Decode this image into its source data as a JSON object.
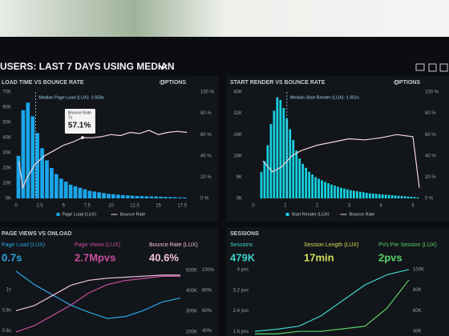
{
  "header": {
    "title": "USERS: LAST 7 DAYS USING MEDIAN"
  },
  "chart_data": [
    {
      "type": "histogram",
      "title": "LOAD TIME VS BOUNCE RATE",
      "options": "OPTIONS",
      "annotation": "Median Page Load (LUX): 2.058s",
      "median": 2.058,
      "tooltip": {
        "title": "Bounce Rate",
        "subtitle": "7s",
        "x": 7,
        "value": 57.1,
        "value_label": "57.1%"
      },
      "bins": [
        0,
        0.5,
        1,
        1.5,
        2,
        2.5,
        3,
        3.5,
        4,
        4.5,
        5,
        5.5,
        6,
        6.5,
        7,
        7.5,
        8,
        8.5,
        9,
        9.5,
        10,
        10.5,
        11,
        11.5,
        12,
        12.5,
        13,
        13.5,
        14,
        14.5,
        15,
        15.5,
        16,
        16.5,
        17,
        17.5,
        18
      ],
      "series": [
        {
          "name": "Page Load (LUX)",
          "color": "#1ba6ea",
          "values": [
            28000,
            58000,
            63000,
            54000,
            43000,
            33000,
            25000,
            20000,
            16000,
            13000,
            11000,
            9000,
            8000,
            7000,
            6000,
            5000,
            4500,
            4000,
            3500,
            3000,
            2800,
            2500,
            2200,
            2000,
            1800,
            1600,
            1500,
            1400,
            1300,
            1200,
            1100,
            1000,
            900,
            800,
            700,
            600
          ]
        },
        {
          "name": "Bounce Rate",
          "color": "#f2d6de",
          "type": "line",
          "axis": "y2",
          "x": [
            0.3,
            0.7,
            1.2,
            2,
            3,
            4,
            5,
            6,
            7,
            8,
            9,
            10,
            11,
            12,
            13,
            14,
            15,
            16,
            17,
            18
          ],
          "values": [
            35,
            10,
            20,
            32,
            40,
            45,
            50,
            53,
            57.1,
            57,
            58,
            60,
            59,
            62,
            61,
            64,
            60,
            62,
            63,
            62
          ]
        }
      ],
      "xlim": [
        0,
        19
      ],
      "xticks": [
        0,
        2.5,
        5,
        7.5,
        10,
        12.5,
        15,
        17.5
      ],
      "ylim": [
        0,
        70000
      ],
      "yticks": [
        {
          "value": 0,
          "label": "0K"
        },
        {
          "value": 10000,
          "label": "10K"
        },
        {
          "value": 20000,
          "label": "20K"
        },
        {
          "value": 30000,
          "label": "30K"
        },
        {
          "value": 40000,
          "label": "40K"
        },
        {
          "value": 50000,
          "label": "50K"
        },
        {
          "value": 60000,
          "label": "60K"
        },
        {
          "value": 70000,
          "label": "70K"
        }
      ],
      "y2lim": [
        0,
        100
      ],
      "y2ticks": [
        {
          "value": 0,
          "label": "0 %"
        },
        {
          "value": 20,
          "label": "20 %"
        },
        {
          "value": 40,
          "label": "40 %"
        },
        {
          "value": 60,
          "label": "60 %"
        },
        {
          "value": 80,
          "label": "80 %"
        },
        {
          "value": 100,
          "label": "100 %"
        }
      ]
    },
    {
      "type": "histogram",
      "title": "START RENDER VS BOUNCE RATE",
      "options": "OPTIONS",
      "annotation": "Median Start Render (LUX): 1.051s",
      "median": 1.051,
      "bins": [
        0.2,
        0.3,
        0.4,
        0.5,
        0.6,
        0.7,
        0.8,
        0.9,
        1,
        1.1,
        1.2,
        1.3,
        1.4,
        1.5,
        1.6,
        1.7,
        1.8,
        1.9,
        2,
        2.1,
        2.2,
        2.3,
        2.4,
        2.5,
        2.6,
        2.7,
        2.8,
        2.9,
        3,
        3.1,
        3.2,
        3.3,
        3.4,
        3.5,
        3.6,
        3.7,
        3.8,
        3.9,
        4,
        4.1,
        4.2,
        4.3,
        4.4,
        4.5,
        4.6,
        4.7,
        4.8,
        4.9,
        5,
        5.1,
        5.2
      ],
      "series": [
        {
          "name": "Start Render (LUX)",
          "color": "#17d0e0",
          "values": [
            10000,
            14000,
            20000,
            28000,
            33000,
            38000,
            37000,
            34000,
            30000,
            26000,
            22000,
            18000,
            15000,
            13000,
            11500,
            10000,
            9000,
            8000,
            7400,
            6800,
            6200,
            5700,
            5200,
            4800,
            4400,
            4000,
            3700,
            3400,
            3100,
            2900,
            2700,
            2500,
            2300,
            2100,
            1900,
            1800,
            1700,
            1600,
            1500,
            1400,
            1300,
            1200,
            1100,
            1000,
            900,
            800,
            700,
            600,
            500,
            400
          ]
        },
        {
          "name": "Bounce Rate",
          "color": "#f2d6de",
          "type": "line",
          "axis": "y2",
          "x": [
            0.3,
            0.6,
            0.9,
            1.2,
            1.5,
            2,
            2.5,
            3,
            3.5,
            4,
            4.5,
            5,
            5.2
          ],
          "values": [
            35,
            25,
            30,
            40,
            45,
            50,
            53,
            56,
            55,
            57,
            60,
            58,
            10
          ]
        }
      ],
      "xlim": [
        -0.1,
        5.25
      ],
      "xticks": [
        0,
        1,
        2,
        3,
        4,
        5
      ],
      "ylim": [
        0,
        40000
      ],
      "yticks": [
        {
          "value": 0,
          "label": "0K"
        },
        {
          "value": 8000,
          "label": "8K"
        },
        {
          "value": 16000,
          "label": "16K"
        },
        {
          "value": 24000,
          "label": "24K"
        },
        {
          "value": 32000,
          "label": "32K"
        },
        {
          "value": 40000,
          "label": "40K"
        }
      ],
      "y2lim": [
        0,
        100
      ],
      "y2ticks": [
        {
          "value": 0,
          "label": "0 %"
        },
        {
          "value": 20,
          "label": "20 %"
        },
        {
          "value": 40,
          "label": "40 %"
        },
        {
          "value": 60,
          "label": "60 %"
        },
        {
          "value": 80,
          "label": "80 %"
        },
        {
          "value": 100,
          "label": "100 %"
        }
      ]
    },
    {
      "type": "line",
      "title": "PAGE VIEWS VS ONLOAD",
      "stats": [
        {
          "label": "Page Load (LUX)",
          "value": "0.7s",
          "color": "#2aa7e6"
        },
        {
          "label": "Page Views (LUX)",
          "value": "2.7Mpvs",
          "color": "#c94fa0"
        },
        {
          "label": "Bounce Rate (LUX)",
          "value": "40.6%",
          "color": "#f0c4dc"
        }
      ],
      "series": [
        {
          "color": "#2aa7e6",
          "values": [
            1.18,
            1.05,
            0.95,
            0.85,
            0.78,
            0.72,
            0.74,
            0.8,
            0.88,
            0.92
          ]
        },
        {
          "color": "#c94fa0",
          "axis": "y2",
          "values": [
            200000,
            230000,
            280000,
            330000,
            390000,
            430000,
            450000,
            460000,
            470000,
            470000
          ]
        },
        {
          "color": "#f0c4dc",
          "axis": "y3",
          "values": [
            60,
            65,
            75,
            85,
            90,
            92,
            93,
            94,
            95,
            95
          ]
        }
      ],
      "ylim": [
        0.55,
        1.25
      ],
      "yticks": [
        {
          "value": 0.6,
          "label": "0.6s"
        },
        {
          "value": 0.8,
          "label": "0.8s"
        },
        {
          "value": 1,
          "label": "1s"
        }
      ],
      "y2lim": [
        180000,
        530000
      ],
      "y2ticks": [
        {
          "value": 200000,
          "label": "200K"
        },
        {
          "value": 300000,
          "label": "300K"
        },
        {
          "value": 400000,
          "label": "400K"
        },
        {
          "value": 500000,
          "label": "500K"
        }
      ],
      "y3lim": [
        35,
        106
      ],
      "y3ticks": [
        {
          "value": 40,
          "label": "40%"
        },
        {
          "value": 60,
          "label": "60%"
        },
        {
          "value": 80,
          "label": "80%"
        },
        {
          "value": 100,
          "label": "100%"
        }
      ]
    },
    {
      "type": "line",
      "title": "SESSIONS",
      "stats": [
        {
          "label": "Sessions",
          "value": "479K",
          "color": "#3ed3c8"
        },
        {
          "label": "Session Length (LUX)",
          "value": "17min",
          "color": "#d4e05a"
        },
        {
          "label": "PVs Per Session (LUX)",
          "value": "2pvs",
          "color": "#5bd36a"
        }
      ],
      "series": [
        {
          "color": "#3ed3c8",
          "axis": "y2",
          "values": [
            40000,
            42000,
            45000,
            55000,
            70000,
            85000,
            95000,
            100000
          ]
        },
        {
          "color": "#5bd36a",
          "values": [
            1.5,
            1.5,
            1.6,
            1.6,
            1.7,
            1.8,
            2.5,
            3.6
          ]
        }
      ],
      "ylim": [
        1.42,
        4.22
      ],
      "yticks": [
        {
          "value": 1.6,
          "label": "1.6 pvs"
        },
        {
          "value": 2.4,
          "label": "2.4 pvs"
        },
        {
          "value": 3.2,
          "label": "3.2 pvs"
        },
        {
          "value": 4,
          "label": "4 pvs"
        }
      ],
      "y2lim": [
        35400,
        105400
      ],
      "y2ticks": [
        {
          "value": 40000,
          "label": "40K"
        },
        {
          "value": 60000,
          "label": "60K"
        },
        {
          "value": 80000,
          "label": "80K"
        },
        {
          "value": 100000,
          "label": "100K"
        }
      ]
    }
  ]
}
